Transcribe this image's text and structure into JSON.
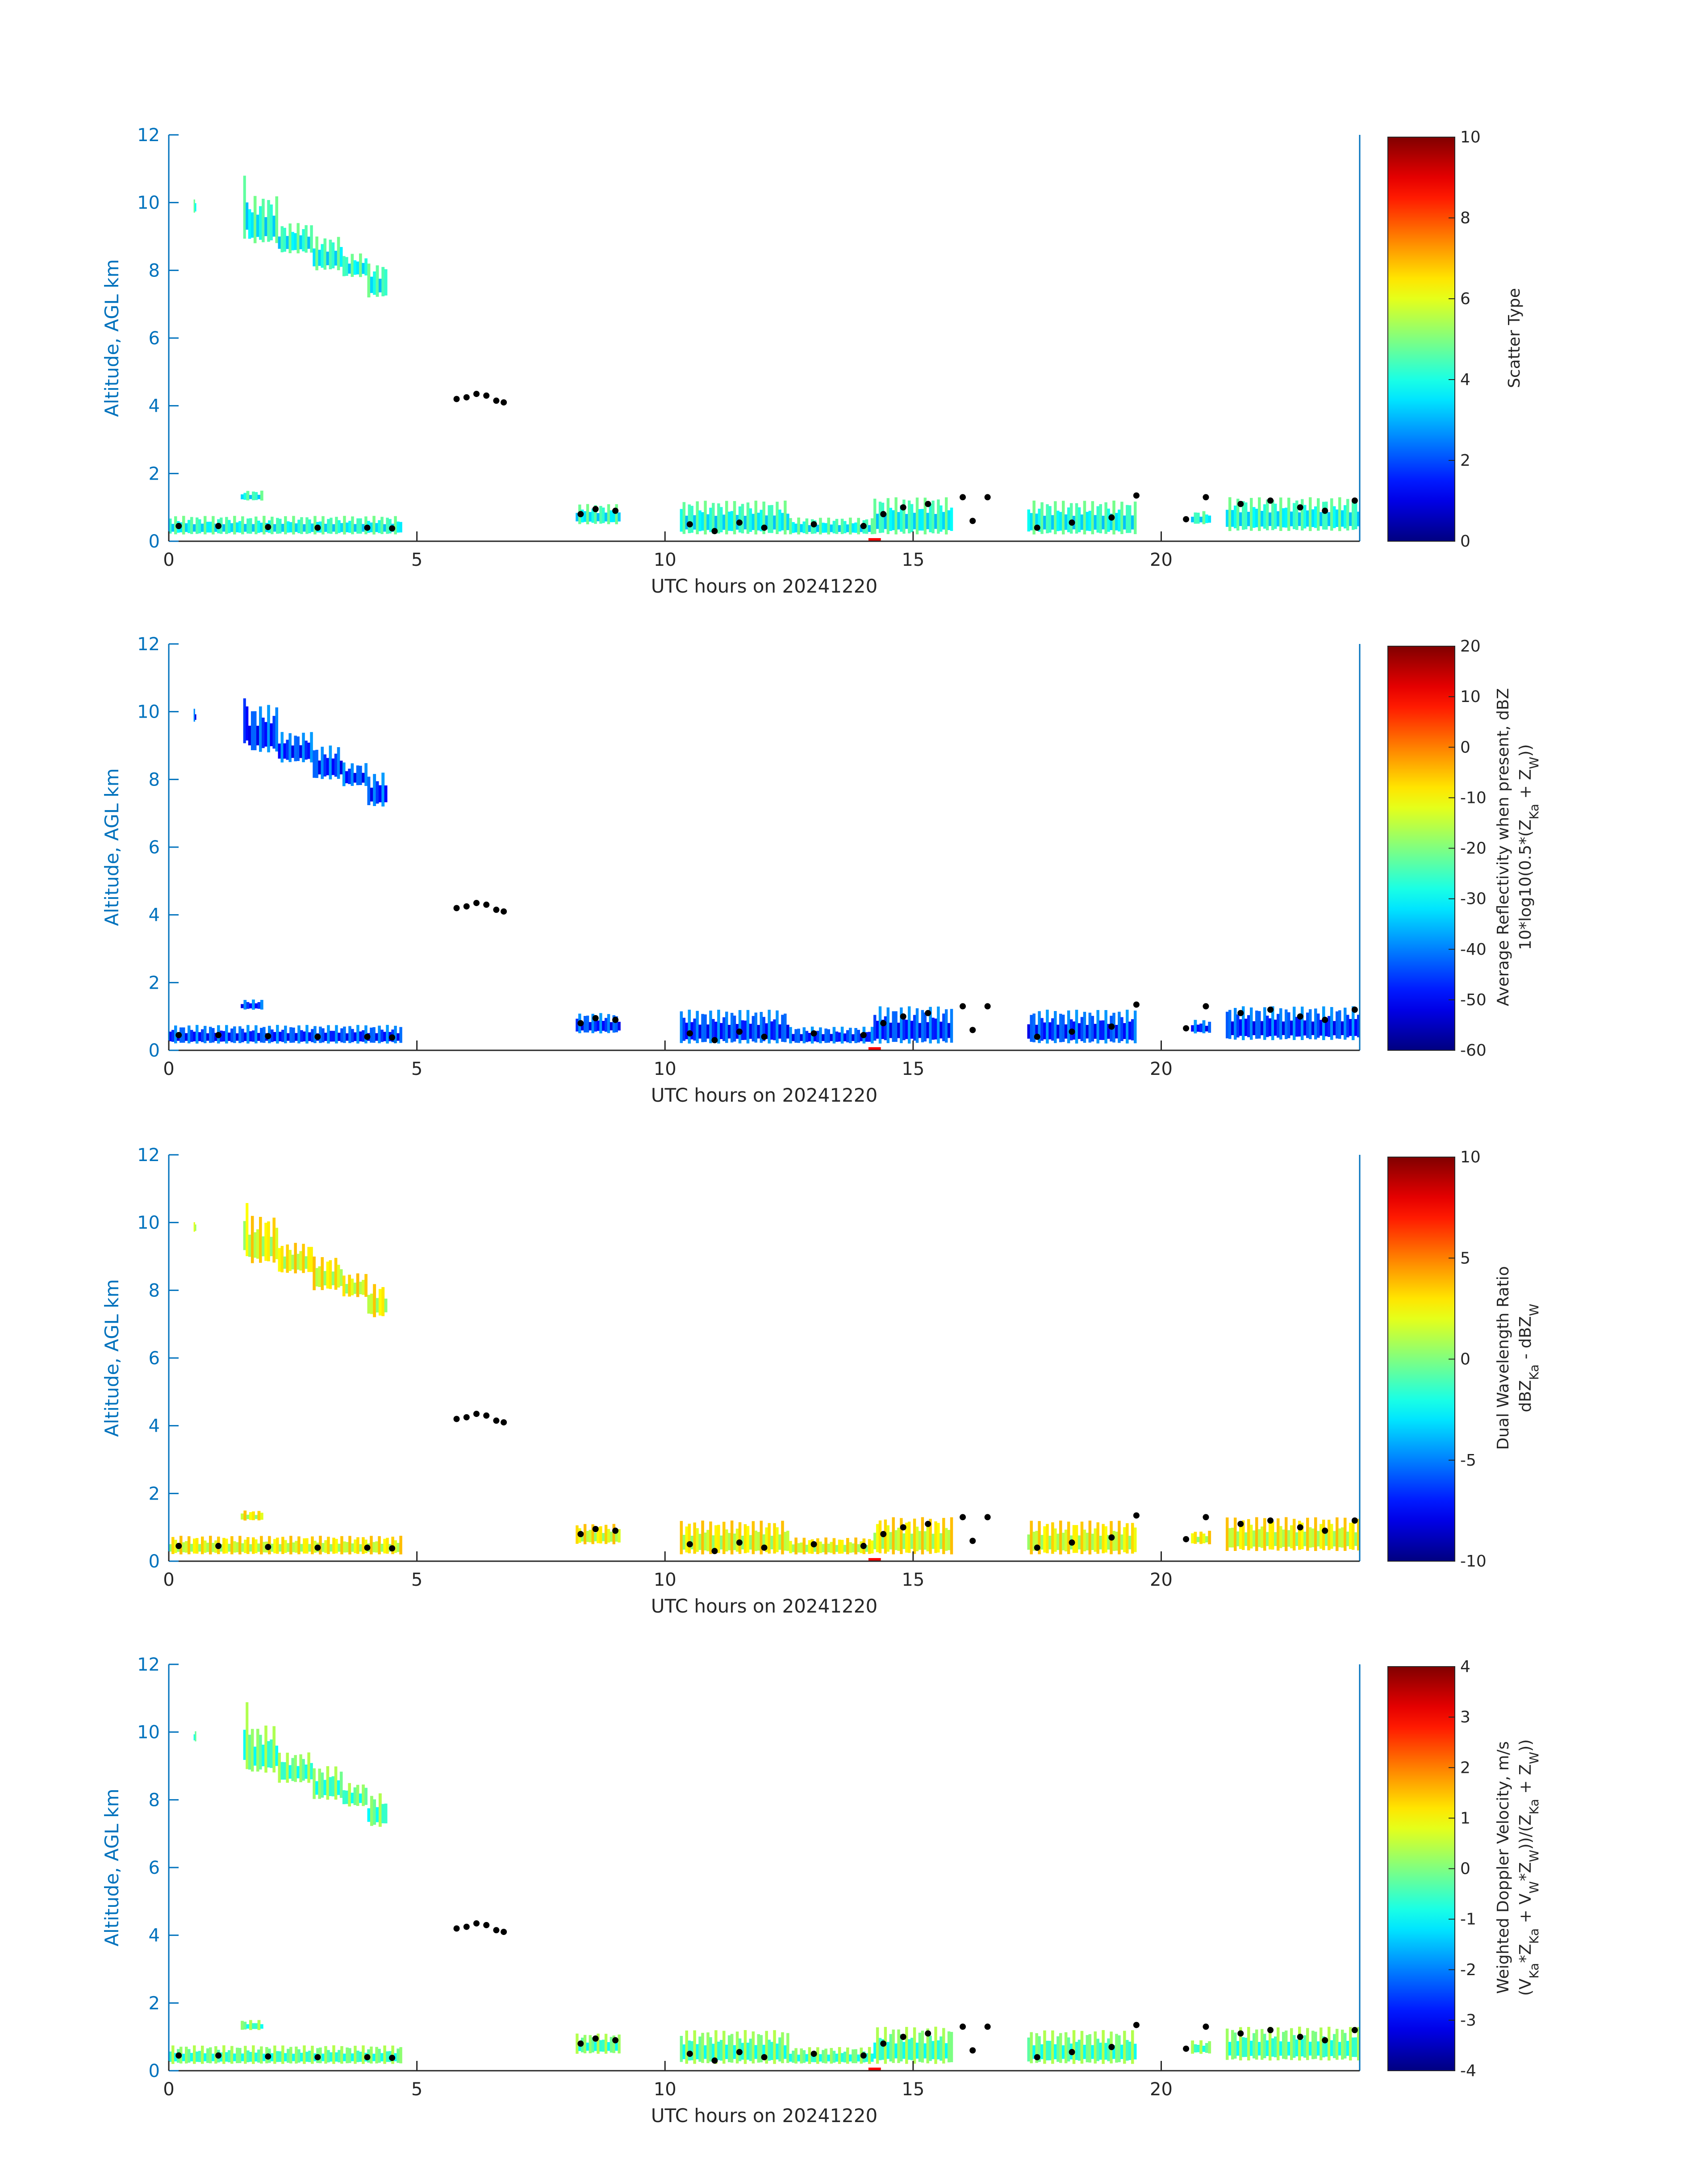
{
  "chart_data": [
    {
      "type": "heatmap",
      "xlabel": "UTC hours on 20241220",
      "ylabel": "Altitude, AGL km",
      "xlim": [
        0,
        24
      ],
      "ylim": [
        0,
        12
      ],
      "xticks": [
        0,
        5,
        10,
        15,
        20
      ],
      "yticks": [
        0,
        2,
        4,
        6,
        8,
        10,
        12
      ],
      "colorbar": {
        "label_lines": [
          "Scatter Type"
        ],
        "range": [
          0,
          10
        ],
        "ticks": [
          0,
          2,
          4,
          6,
          8,
          10
        ],
        "colormap": "jet"
      },
      "field_value_typical": 4
    },
    {
      "type": "heatmap",
      "xlabel": "UTC hours on 20241220",
      "ylabel": "Altitude, AGL km",
      "xlim": [
        0,
        24
      ],
      "ylim": [
        0,
        12
      ],
      "xticks": [
        0,
        5,
        10,
        15,
        20
      ],
      "yticks": [
        0,
        2,
        4,
        6,
        8,
        10,
        12
      ],
      "colorbar": {
        "label_lines": [
          "Average Reflectivity when present, dBZ",
          "10*log10(0.5*(Z_Ka + Z_W))"
        ],
        "range": [
          -60,
          20
        ],
        "ticks": [
          -60,
          -50,
          -40,
          -30,
          -20,
          -10,
          0,
          10,
          20
        ],
        "colormap": "jet"
      },
      "field_value_typical": -45
    },
    {
      "type": "heatmap",
      "xlabel": "UTC hours on 20241220",
      "ylabel": "Altitude, AGL km",
      "xlim": [
        0,
        24
      ],
      "ylim": [
        0,
        12
      ],
      "xticks": [
        0,
        5,
        10,
        15,
        20
      ],
      "yticks": [
        0,
        2,
        4,
        6,
        8,
        10,
        12
      ],
      "colorbar": {
        "label_lines": [
          "Dual Wavelength Ratio",
          "dBZ_Ka - dBZ_W"
        ],
        "range": [
          -10,
          10
        ],
        "ticks": [
          -10,
          -5,
          0,
          5,
          10
        ],
        "colormap": "jet"
      },
      "field_value_typical": 2
    },
    {
      "type": "heatmap",
      "xlabel": "UTC hours on 20241220",
      "ylabel": "Altitude, AGL km",
      "xlim": [
        0,
        24
      ],
      "ylim": [
        0,
        12
      ],
      "xticks": [
        0,
        5,
        10,
        15,
        20
      ],
      "yticks": [
        0,
        2,
        4,
        6,
        8,
        10,
        12
      ],
      "colorbar": {
        "label_lines": [
          "Weighted Doppler Velocity, m/s",
          "(V_Ka*Z_Ka + V_W*Z_W))/(Z_Ka + Z_W))"
        ],
        "range": [
          -4,
          4
        ],
        "ticks": [
          -4,
          -3,
          -2,
          -1,
          0,
          1,
          2,
          3,
          4
        ],
        "colormap": "jet"
      },
      "field_value_typical": -0.3
    }
  ],
  "echo_regions": [
    {
      "t0": 0.5,
      "t1": 0.55,
      "z0": 9.7,
      "z1": 10.1
    },
    {
      "t0": 1.5,
      "t1": 1.6,
      "z0": 8.9,
      "z1": 10.9
    },
    {
      "t0": 1.6,
      "t1": 2.2,
      "z0": 8.8,
      "z1": 10.2
    },
    {
      "t0": 2.2,
      "t1": 2.9,
      "z0": 8.5,
      "z1": 9.4
    },
    {
      "t0": 2.9,
      "t1": 3.5,
      "z0": 8.0,
      "z1": 9.0
    },
    {
      "t0": 3.5,
      "t1": 4.0,
      "z0": 7.8,
      "z1": 8.5
    },
    {
      "t0": 4.0,
      "t1": 4.4,
      "z0": 7.2,
      "z1": 8.2
    },
    {
      "t0": 0.0,
      "t1": 4.7,
      "z0": 0.2,
      "z1": 0.75
    },
    {
      "t0": 1.45,
      "t1": 1.9,
      "z0": 1.2,
      "z1": 1.5
    },
    {
      "t0": 8.2,
      "t1": 9.1,
      "z0": 0.5,
      "z1": 1.1
    },
    {
      "t0": 10.3,
      "t1": 12.5,
      "z0": 0.2,
      "z1": 1.2
    },
    {
      "t0": 12.5,
      "t1": 14.2,
      "z0": 0.2,
      "z1": 0.7
    },
    {
      "t0": 14.2,
      "t1": 15.8,
      "z0": 0.2,
      "z1": 1.3
    },
    {
      "t0": 17.3,
      "t1": 19.5,
      "z0": 0.2,
      "z1": 1.2
    },
    {
      "t0": 20.6,
      "t1": 21.0,
      "z0": 0.5,
      "z1": 0.9
    },
    {
      "t0": 21.3,
      "t1": 24.0,
      "z0": 0.3,
      "z1": 1.3
    }
  ],
  "cloud_top_points": [
    {
      "t": 5.8,
      "z": 4.2
    },
    {
      "t": 6.0,
      "z": 4.25
    },
    {
      "t": 6.2,
      "z": 4.35
    },
    {
      "t": 6.4,
      "z": 4.3
    },
    {
      "t": 6.6,
      "z": 4.15
    },
    {
      "t": 6.75,
      "z": 4.1
    },
    {
      "t": 0.2,
      "z": 0.45
    },
    {
      "t": 1.0,
      "z": 0.45
    },
    {
      "t": 2.0,
      "z": 0.42
    },
    {
      "t": 3.0,
      "z": 0.4
    },
    {
      "t": 4.0,
      "z": 0.4
    },
    {
      "t": 4.5,
      "z": 0.38
    },
    {
      "t": 8.3,
      "z": 0.8
    },
    {
      "t": 8.6,
      "z": 0.95
    },
    {
      "t": 9.0,
      "z": 0.9
    },
    {
      "t": 10.5,
      "z": 0.5
    },
    {
      "t": 11.0,
      "z": 0.3
    },
    {
      "t": 11.5,
      "z": 0.55
    },
    {
      "t": 12.0,
      "z": 0.4
    },
    {
      "t": 13.0,
      "z": 0.5
    },
    {
      "t": 14.0,
      "z": 0.45
    },
    {
      "t": 14.4,
      "z": 0.8
    },
    {
      "t": 14.8,
      "z": 1.0
    },
    {
      "t": 15.3,
      "z": 1.1
    },
    {
      "t": 16.0,
      "z": 1.3
    },
    {
      "t": 16.5,
      "z": 1.3
    },
    {
      "t": 16.2,
      "z": 0.6
    },
    {
      "t": 17.5,
      "z": 0.4
    },
    {
      "t": 18.2,
      "z": 0.55
    },
    {
      "t": 19.0,
      "z": 0.7
    },
    {
      "t": 19.5,
      "z": 1.35
    },
    {
      "t": 20.5,
      "z": 0.65
    },
    {
      "t": 20.9,
      "z": 1.3
    },
    {
      "t": 21.6,
      "z": 1.1
    },
    {
      "t": 22.2,
      "z": 1.2
    },
    {
      "t": 22.8,
      "z": 1.0
    },
    {
      "t": 23.3,
      "z": 0.9
    },
    {
      "t": 23.9,
      "z": 1.2
    }
  ],
  "time_marker_hours": [
    14.1,
    14.35
  ]
}
